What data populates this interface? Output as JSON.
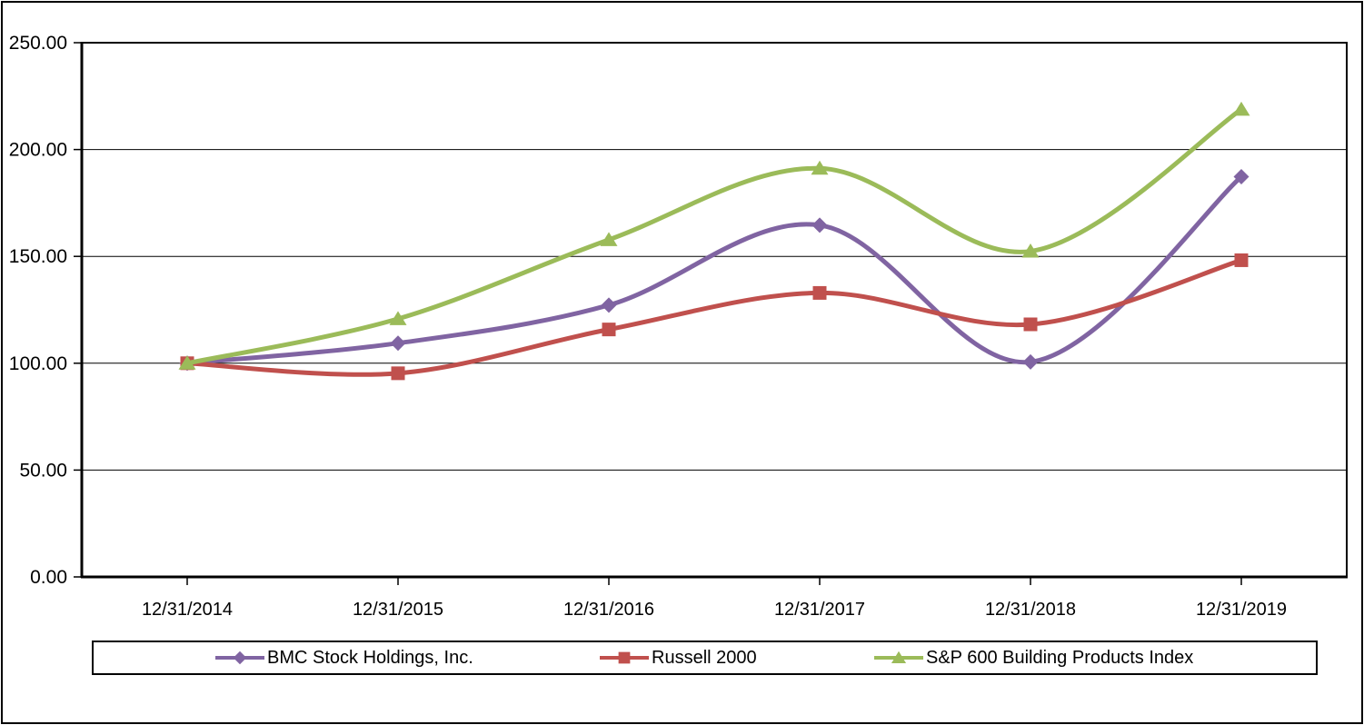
{
  "page": {
    "background_color": "#FFFFFF",
    "border_color": "#000000"
  },
  "chart_data": {
    "type": "line",
    "title": "",
    "xlabel": "",
    "ylabel": "",
    "categories": [
      "12/31/2014",
      "12/31/2015",
      "12/31/2016",
      "12/31/2017",
      "12/31/2018",
      "12/31/2019"
    ],
    "series": [
      {
        "name": "BMC Stock Holdings, Inc.",
        "color": "#8064A2",
        "marker": "diamond",
        "values": [
          100.0,
          109.4,
          127.2,
          164.6,
          100.6,
          187.3
        ]
      },
      {
        "name": "Russell 2000",
        "color": "#C0504D",
        "marker": "square",
        "values": [
          100.0,
          95.3,
          115.8,
          132.9,
          118.2,
          148.2
        ]
      },
      {
        "name": "S&P 600 Building Products Index",
        "color": "#9BBB59",
        "marker": "triangle",
        "values": [
          100.0,
          120.8,
          157.8,
          191.2,
          152.4,
          218.8
        ]
      }
    ],
    "ylim": [
      0,
      250
    ],
    "ytick_step": 50,
    "ytick_labels": [
      "0.00",
      "50.00",
      "100.00",
      "150.00",
      "200.00",
      "250.00"
    ],
    "grid": true,
    "gridline_color": "#000000",
    "line_smoothing": true,
    "legend_position": "bottom-boxed"
  }
}
